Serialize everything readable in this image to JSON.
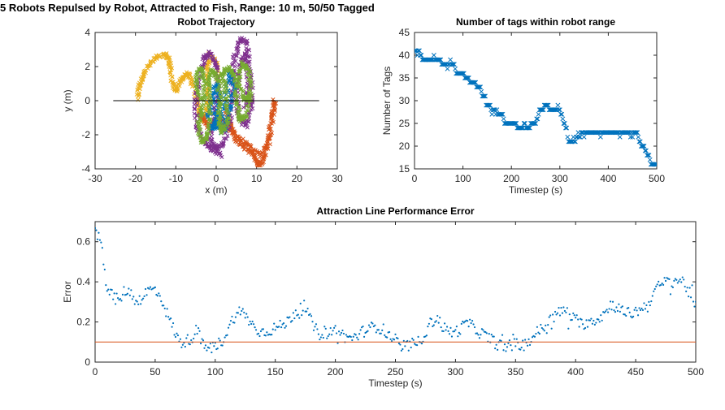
{
  "figure": {
    "suptitle": "5 Robots Repulsed by Robot, Attracted to Fish, Range: 10 m, 50/50 Tagged"
  },
  "colors": {
    "blue": "#0072BD",
    "orange": "#D95319",
    "yellow": "#EDB120",
    "purple": "#7E2F8E",
    "green": "#77AC30",
    "black": "#000000"
  },
  "chart_data": [
    {
      "id": "trajectory",
      "type": "scatter",
      "title": "Robot Trajectory",
      "xlabel": "x (m)",
      "ylabel": "y (m)",
      "xlim": [
        -30,
        30
      ],
      "ylim": [
        -4,
        4
      ],
      "xticks": [
        -30,
        -20,
        -10,
        0,
        10,
        20,
        30
      ],
      "yticks": [
        -4,
        -2,
        0,
        2,
        4
      ],
      "marker": "x",
      "reference_line": {
        "x": [
          -25.5,
          25.5
        ],
        "y": [
          0,
          0
        ],
        "color": "#000000"
      },
      "series": [
        {
          "color": "#EDB120",
          "path": [
            [
              -19.5,
              0.1
            ],
            [
              -19,
              1.0
            ],
            [
              -17.5,
              1.8
            ],
            [
              -15,
              2.5
            ],
            [
              -12.5,
              2.7
            ],
            [
              -11.5,
              2.3
            ],
            [
              -11,
              1.2
            ],
            [
              -10,
              0.5
            ],
            [
              -8.5,
              1.3
            ],
            [
              -7,
              1.6
            ],
            [
              -5.5,
              0.8
            ],
            [
              -4.5,
              -0.2
            ],
            [
              -3.5,
              -1.2
            ],
            [
              -2.5,
              -0.8
            ],
            [
              -2,
              0.5
            ],
            [
              -2.5,
              1.8
            ],
            [
              -1.5,
              2.7
            ],
            [
              0,
              2.2
            ],
            [
              0.5,
              1.0
            ]
          ]
        },
        {
          "color": "#D95319",
          "path": [
            [
              2.5,
              -0.5
            ],
            [
              3.5,
              -1.5
            ],
            [
              5,
              -2.4
            ],
            [
              7.5,
              -2.8
            ],
            [
              9.5,
              -3.2
            ],
            [
              10.5,
              -3.8
            ],
            [
              11.5,
              -3.5
            ],
            [
              13,
              -2.5
            ],
            [
              14,
              -0.8
            ],
            [
              14.5,
              0
            ],
            [
              13,
              -2.2
            ],
            [
              11,
              -3.2
            ],
            [
              8,
              -2.6
            ],
            [
              5,
              -2.1
            ],
            [
              3,
              -1.5
            ],
            [
              1,
              -1.0
            ],
            [
              -2,
              -1.5
            ],
            [
              -4,
              -0.8
            ]
          ]
        },
        {
          "color": "#7E2F8E",
          "path": [
            [
              1,
              -3.2
            ],
            [
              -1,
              -2.8
            ],
            [
              -3,
              -2.4
            ],
            [
              -5,
              -1.5
            ],
            [
              -5,
              0
            ],
            [
              -4,
              1.5
            ],
            [
              -3,
              2.5
            ],
            [
              -1.5,
              2.8
            ],
            [
              0,
              2
            ],
            [
              0.5,
              0.5
            ],
            [
              -0.5,
              -1
            ],
            [
              -1.5,
              -2.2
            ],
            [
              0,
              -2.8
            ],
            [
              2,
              -2.5
            ],
            [
              3.5,
              -1
            ],
            [
              4,
              1
            ],
            [
              4.5,
              2.5
            ],
            [
              6,
              3.6
            ],
            [
              7.5,
              3.4
            ],
            [
              8.5,
              1.5
            ],
            [
              9,
              -0.2
            ],
            [
              7.5,
              -1.5
            ],
            [
              5.5,
              -1.0
            ],
            [
              5,
              0.5
            ],
            [
              6,
              2.2
            ],
            [
              7.5,
              2.8
            ],
            [
              8,
              1.0
            ],
            [
              7,
              -0.5
            ]
          ]
        },
        {
          "color": "#0072BD",
          "path": [
            [
              -2,
              -1.0
            ],
            [
              -1,
              0
            ],
            [
              0,
              1.0
            ],
            [
              1,
              0.2
            ],
            [
              0,
              -1.2
            ],
            [
              -1,
              -1.6
            ],
            [
              1,
              -1.4
            ],
            [
              2.5,
              0.5
            ],
            [
              3.5,
              1.8
            ],
            [
              4.5,
              0.8
            ],
            [
              3,
              -0.8
            ],
            [
              1.5,
              -1.8
            ],
            [
              -0.5,
              -0.6
            ]
          ]
        },
        {
          "color": "#77AC30",
          "path": [
            [
              -4,
              0
            ],
            [
              -5,
              1.2
            ],
            [
              -4,
              2.0
            ],
            [
              -3,
              1.0
            ],
            [
              -3.5,
              -0.5
            ],
            [
              -4.5,
              -1.5
            ],
            [
              -3.5,
              -2.5
            ],
            [
              -2,
              -2.0
            ],
            [
              -1.5,
              -0.5
            ],
            [
              -2,
              1.0
            ],
            [
              -1,
              1.8
            ],
            [
              0.5,
              1.2
            ],
            [
              1,
              -0.2
            ],
            [
              0.5,
              -1.2
            ],
            [
              1.5,
              -1.9
            ],
            [
              3,
              -1.0
            ],
            [
              2.5,
              0.5
            ],
            [
              1.5,
              1.5
            ],
            [
              3,
              2.0
            ],
            [
              4.5,
              1.4
            ],
            [
              5,
              0
            ],
            [
              6,
              -1.2
            ],
            [
              7.5,
              -0.8
            ],
            [
              8.5,
              0.5
            ],
            [
              8,
              1.8
            ],
            [
              6.5,
              2.2
            ],
            [
              5.5,
              1.0
            ],
            [
              7,
              0.1
            ],
            [
              8.5,
              0.2
            ]
          ]
        }
      ]
    },
    {
      "id": "tags",
      "type": "scatter",
      "title": "Number of tags within robot range",
      "xlabel": "Timestep (s)",
      "ylabel": "Number of Tags",
      "xlim": [
        0,
        500
      ],
      "ylim": [
        15,
        45
      ],
      "xticks": [
        0,
        100,
        200,
        300,
        400,
        500
      ],
      "yticks": [
        15,
        20,
        25,
        30,
        35,
        40,
        45
      ],
      "marker": "x",
      "color": "#0072BD",
      "breakpoints": [
        [
          0,
          41
        ],
        [
          10,
          41
        ],
        [
          12,
          40
        ],
        [
          15,
          39
        ],
        [
          50,
          39
        ],
        [
          55,
          38
        ],
        [
          80,
          38
        ],
        [
          83,
          37
        ],
        [
          85,
          36
        ],
        [
          100,
          36
        ],
        [
          103,
          35
        ],
        [
          110,
          35
        ],
        [
          113,
          34
        ],
        [
          125,
          34
        ],
        [
          128,
          33
        ],
        [
          135,
          33
        ],
        [
          138,
          32
        ],
        [
          140,
          31
        ],
        [
          145,
          30
        ],
        [
          147,
          29
        ],
        [
          155,
          29
        ],
        [
          158,
          28
        ],
        [
          165,
          28
        ],
        [
          168,
          27
        ],
        [
          180,
          27
        ],
        [
          183,
          26
        ],
        [
          185,
          25
        ],
        [
          210,
          25
        ],
        [
          212,
          24
        ],
        [
          222,
          24
        ],
        [
          225,
          25
        ],
        [
          230,
          24
        ],
        [
          237,
          24
        ],
        [
          240,
          25
        ],
        [
          248,
          25
        ],
        [
          251,
          26
        ],
        [
          255,
          27
        ],
        [
          258,
          28
        ],
        [
          265,
          28
        ],
        [
          268,
          29
        ],
        [
          275,
          29
        ],
        [
          278,
          28
        ],
        [
          298,
          28
        ],
        [
          302,
          27
        ],
        [
          305,
          26
        ],
        [
          308,
          25
        ],
        [
          312,
          24
        ],
        [
          315,
          22
        ],
        [
          318,
          21
        ],
        [
          330,
          21
        ],
        [
          333,
          22
        ],
        [
          340,
          22
        ],
        [
          343,
          23
        ],
        [
          458,
          23
        ],
        [
          461,
          22
        ],
        [
          464,
          21
        ],
        [
          467,
          20
        ],
        [
          473,
          20
        ],
        [
          475,
          19
        ],
        [
          480,
          18
        ],
        [
          485,
          17
        ],
        [
          488,
          16
        ],
        [
          500,
          16
        ]
      ]
    },
    {
      "id": "error",
      "type": "scatter",
      "title": "Attraction Line Performance Error",
      "xlabel": "Timestep (s)",
      "ylabel": "Error",
      "xlim": [
        0,
        500
      ],
      "ylim": [
        0,
        0.7
      ],
      "xticks": [
        0,
        50,
        100,
        150,
        200,
        250,
        300,
        350,
        400,
        450,
        500
      ],
      "yticks": [
        0,
        0.2,
        0.4,
        0.6
      ],
      "marker": "dot",
      "color": "#0072BD",
      "threshold": {
        "y": 0.1,
        "color": "#D95319"
      },
      "trend": [
        [
          0,
          0.64
        ],
        [
          3,
          0.62
        ],
        [
          6,
          0.55
        ],
        [
          8,
          0.45
        ],
        [
          10,
          0.36
        ],
        [
          15,
          0.33
        ],
        [
          20,
          0.3
        ],
        [
          25,
          0.36
        ],
        [
          30,
          0.34
        ],
        [
          35,
          0.3
        ],
        [
          40,
          0.33
        ],
        [
          45,
          0.36
        ],
        [
          50,
          0.36
        ],
        [
          55,
          0.32
        ],
        [
          60,
          0.24
        ],
        [
          65,
          0.17
        ],
        [
          70,
          0.1
        ],
        [
          75,
          0.1
        ],
        [
          80,
          0.12
        ],
        [
          85,
          0.16
        ],
        [
          90,
          0.08
        ],
        [
          95,
          0.07
        ],
        [
          100,
          0.08
        ],
        [
          105,
          0.1
        ],
        [
          110,
          0.15
        ],
        [
          115,
          0.22
        ],
        [
          120,
          0.25
        ],
        [
          125,
          0.24
        ],
        [
          130,
          0.19
        ],
        [
          135,
          0.16
        ],
        [
          140,
          0.15
        ],
        [
          145,
          0.16
        ],
        [
          150,
          0.17
        ],
        [
          155,
          0.18
        ],
        [
          160,
          0.2
        ],
        [
          165,
          0.24
        ],
        [
          170,
          0.26
        ],
        [
          175,
          0.27
        ],
        [
          180,
          0.2
        ],
        [
          185,
          0.15
        ],
        [
          190,
          0.15
        ],
        [
          195,
          0.15
        ],
        [
          200,
          0.16
        ],
        [
          205,
          0.14
        ],
        [
          210,
          0.12
        ],
        [
          215,
          0.12
        ],
        [
          220,
          0.14
        ],
        [
          225,
          0.16
        ],
        [
          230,
          0.17
        ],
        [
          235,
          0.18
        ],
        [
          240,
          0.16
        ],
        [
          245,
          0.13
        ],
        [
          250,
          0.11
        ],
        [
          255,
          0.07
        ],
        [
          260,
          0.08
        ],
        [
          265,
          0.09
        ],
        [
          270,
          0.1
        ],
        [
          275,
          0.15
        ],
        [
          280,
          0.2
        ],
        [
          285,
          0.22
        ],
        [
          290,
          0.17
        ],
        [
          295,
          0.15
        ],
        [
          300,
          0.15
        ],
        [
          305,
          0.17
        ],
        [
          310,
          0.2
        ],
        [
          315,
          0.17
        ],
        [
          320,
          0.15
        ],
        [
          325,
          0.13
        ],
        [
          330,
          0.11
        ],
        [
          335,
          0.09
        ],
        [
          340,
          0.08
        ],
        [
          345,
          0.08
        ],
        [
          350,
          0.09
        ],
        [
          355,
          0.08
        ],
        [
          360,
          0.1
        ],
        [
          365,
          0.13
        ],
        [
          370,
          0.16
        ],
        [
          375,
          0.18
        ],
        [
          380,
          0.22
        ],
        [
          385,
          0.24
        ],
        [
          390,
          0.26
        ],
        [
          395,
          0.24
        ],
        [
          400,
          0.2
        ],
        [
          405,
          0.19
        ],
        [
          410,
          0.2
        ],
        [
          415,
          0.21
        ],
        [
          420,
          0.22
        ],
        [
          425,
          0.25
        ],
        [
          430,
          0.29
        ],
        [
          435,
          0.27
        ],
        [
          440,
          0.25
        ],
        [
          445,
          0.24
        ],
        [
          450,
          0.25
        ],
        [
          455,
          0.27
        ],
        [
          460,
          0.28
        ],
        [
          465,
          0.35
        ],
        [
          470,
          0.38
        ],
        [
          475,
          0.4
        ],
        [
          480,
          0.4
        ],
        [
          485,
          0.41
        ],
        [
          490,
          0.4
        ],
        [
          495,
          0.34
        ],
        [
          500,
          0.28
        ]
      ]
    }
  ]
}
